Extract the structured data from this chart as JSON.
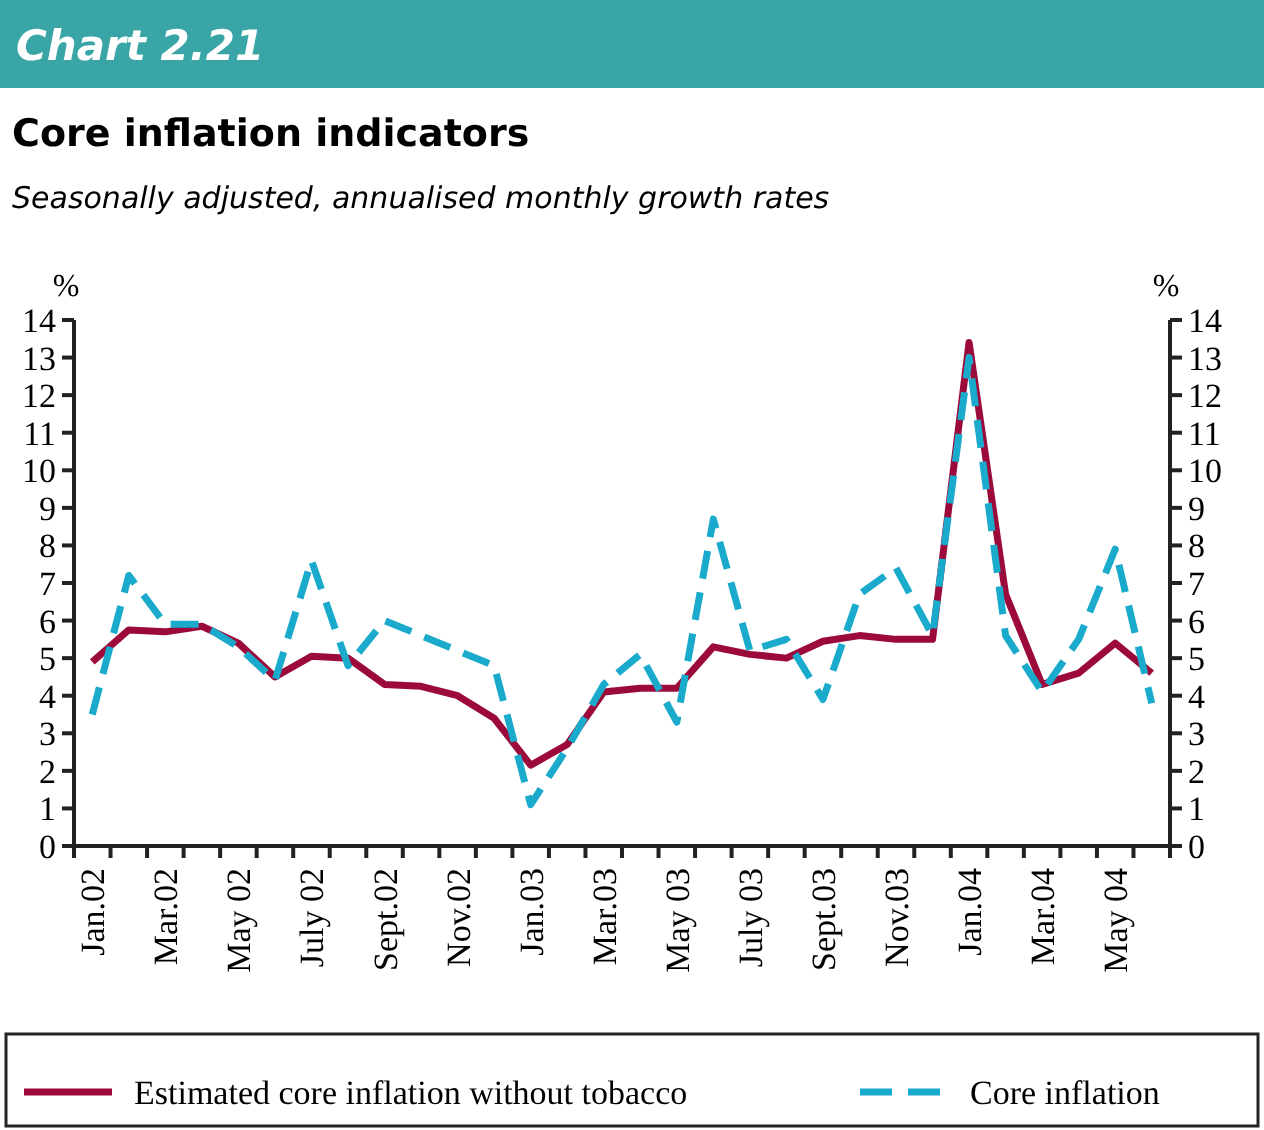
{
  "chart_data": {
    "type": "line",
    "title": "Core inflation indicators",
    "subtitle": "Seasonally adjusted, annualised monthly growth rates",
    "annotations": [
      "Chart 2.21"
    ],
    "ylabel": "%",
    "y2label": "%",
    "categories": [
      "Jan.02",
      null,
      "Mar.02",
      null,
      "May 02",
      null,
      "July 02",
      null,
      "Sept.02",
      null,
      "Nov.02",
      null,
      "Jan.03",
      null,
      "Mar.03",
      null,
      "May 03",
      null,
      "July 03",
      null,
      "Sept.03",
      null,
      "Nov.03",
      null,
      "Jan.04",
      null,
      "Mar.04",
      null,
      "May 04",
      null
    ],
    "series": [
      {
        "name": "Estimated core inflation without tobacco",
        "color": "#9b0a3a",
        "line_style": "solid",
        "values": [
          4.9,
          5.75,
          5.7,
          5.85,
          5.4,
          4.5,
          5.05,
          5.0,
          4.3,
          4.25,
          4.0,
          3.4,
          2.15,
          2.7,
          4.1,
          4.2,
          4.2,
          5.3,
          5.1,
          5.0,
          5.45,
          5.6,
          5.5,
          5.5,
          13.4,
          6.7,
          4.3,
          4.6,
          5.4,
          4.6
        ]
      },
      {
        "name": "Core inflation",
        "color": "#1aaacc",
        "line_style": "dashed",
        "values": [
          3.5,
          7.2,
          5.9,
          5.9,
          5.3,
          4.4,
          7.6,
          4.8,
          6.0,
          5.6,
          5.2,
          4.8,
          1.1,
          2.6,
          4.3,
          5.1,
          3.3,
          8.7,
          5.2,
          5.5,
          3.9,
          6.7,
          7.4,
          5.6,
          13.0,
          5.6,
          4.1,
          5.5,
          7.9,
          3.8
        ]
      }
    ],
    "ylim": [
      0,
      14
    ],
    "yticks": [
      0,
      1,
      2,
      3,
      4,
      5,
      6,
      7,
      8,
      9,
      10,
      11,
      12,
      13,
      14
    ],
    "y2lim": [
      0,
      14
    ],
    "y2ticks": [
      0,
      1,
      2,
      3,
      4,
      5,
      6,
      7,
      8,
      9,
      10,
      11,
      12,
      13,
      14
    ],
    "grid": false,
    "legend": "bottom",
    "marker": "none"
  }
}
